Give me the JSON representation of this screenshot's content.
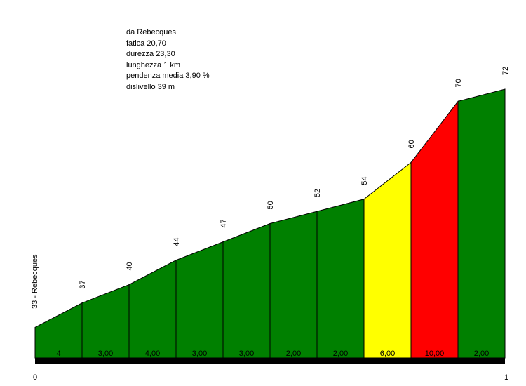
{
  "info": {
    "from": "da Rebecques",
    "fatica": "fatica 20,70",
    "durezza": "durezza 23,30",
    "lunghezza": "lunghezza 1 km",
    "pendenza": "pendenza media 3,90 %",
    "dislivello": "dislivello 39 m"
  },
  "chart_data": {
    "type": "area",
    "title": "",
    "xlabel": "",
    "ylabel": "",
    "x_start_label": "0",
    "x_end_label": "1",
    "start_label": "33 - Rebecques",
    "ylim": [
      28,
      82
    ],
    "altitudes": [
      33,
      37,
      40,
      44,
      47,
      50,
      52,
      54,
      60,
      70,
      72
    ],
    "altitude_labels": [
      "37",
      "40",
      "44",
      "47",
      "50",
      "52",
      "54",
      "60",
      "70",
      "72"
    ],
    "gradients": [
      "4",
      "3,00",
      "4,00",
      "3,00",
      "3,00",
      "2,00",
      "2,00",
      "6,00",
      "10,00",
      "2,00"
    ],
    "segment_colors": [
      "#008000",
      "#008000",
      "#008000",
      "#008000",
      "#008000",
      "#008000",
      "#008000",
      "#ffff00",
      "#ff0000",
      "#008000"
    ]
  }
}
